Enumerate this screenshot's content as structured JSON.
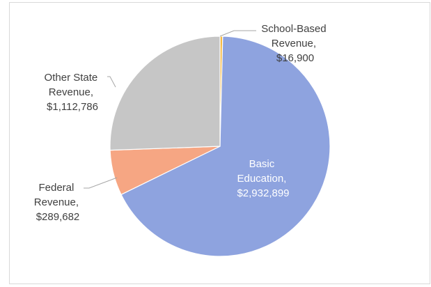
{
  "chart_data": {
    "type": "pie",
    "title": "",
    "legend": "none",
    "series": [
      {
        "name": "",
        "slices": [
          {
            "label": "School-Based Revenue",
            "value": 16900,
            "value_text": "$16,900",
            "color": "#f5b942"
          },
          {
            "label": "Basic Education",
            "value": 2932899,
            "value_text": "$2,932,899",
            "color": "#8ea3df"
          },
          {
            "label": "Federal Revenue",
            "value": 289682,
            "value_text": "$289,682",
            "color": "#f6a683"
          },
          {
            "label": "Other State Revenue",
            "value": 1112786,
            "value_text": "$1,112,786",
            "color": "#c6c6c6"
          }
        ]
      }
    ],
    "labels": {
      "school": [
        "School-Based",
        "Revenue,",
        "$16,900"
      ],
      "basic": [
        "Basic",
        "Education,",
        "$2,932,899"
      ],
      "federal": [
        "Federal",
        "Revenue,",
        "$289,682"
      ],
      "other": [
        "Other State",
        "Revenue,",
        "$1,112,786"
      ]
    }
  }
}
